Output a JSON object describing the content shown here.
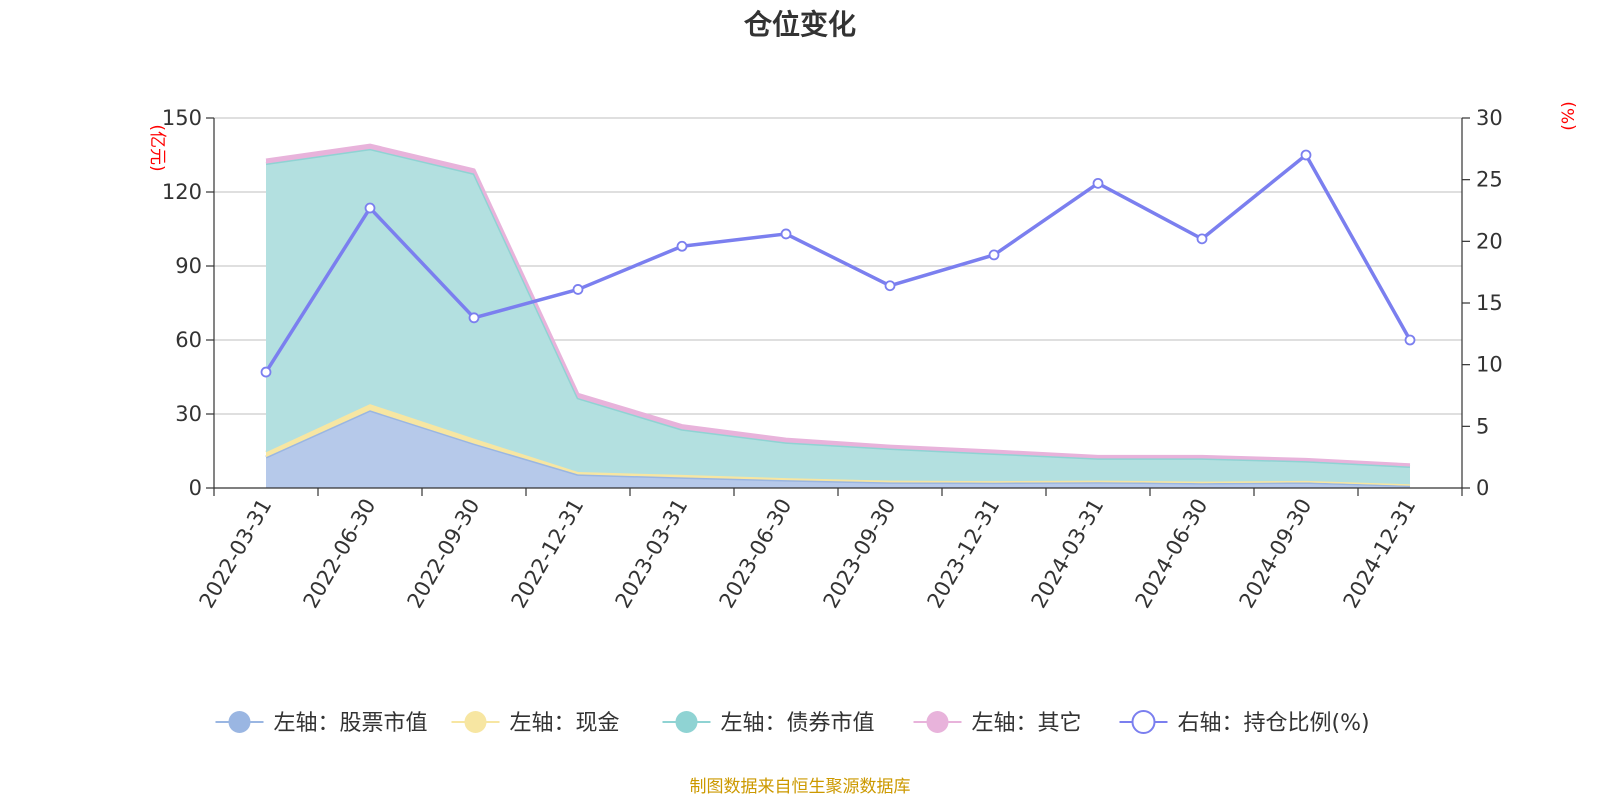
{
  "chart_data": {
    "type": "area",
    "title": "仓位变化",
    "y_left_label": "(亿元)",
    "y_right_label": "(%)",
    "y_left_range": [
      0,
      150
    ],
    "y_left_ticks": [
      0,
      30,
      60,
      90,
      120,
      150
    ],
    "y_right_range": [
      0,
      30
    ],
    "y_right_ticks": [
      0,
      5,
      10,
      15,
      20,
      25,
      30
    ],
    "grid": true,
    "legend_position": "bottom",
    "categories": [
      "2022-03-31",
      "2022-06-30",
      "2022-09-30",
      "2022-12-31",
      "2023-03-31",
      "2023-06-30",
      "2023-09-30",
      "2023-12-31",
      "2024-03-31",
      "2024-06-30",
      "2024-09-30",
      "2024-12-31"
    ],
    "stacked_series": [
      {
        "name": "左轴：股票市值",
        "color": "#9ab6e2",
        "fill": "#b6c9ea",
        "values": [
          12.5,
          31.5,
          18.0,
          5.5,
          4.3,
          3.2,
          2.3,
          2.2,
          2.4,
          2.0,
          2.3,
          1.0
        ]
      },
      {
        "name": "左轴：现金",
        "color": "#f7e6a2",
        "fill": "#f7e6a2",
        "values": [
          2.0,
          2.5,
          2.0,
          1.0,
          1.0,
          0.8,
          0.7,
          0.6,
          0.6,
          0.6,
          0.6,
          0.5
        ]
      },
      {
        "name": "左轴：债券市值",
        "color": "#8fd3d3",
        "fill": "#b3e0e0",
        "values": [
          117.0,
          103.5,
          107.5,
          30.0,
          18.5,
          14.5,
          13.0,
          11.2,
          9.0,
          9.4,
          8.0,
          7.2
        ]
      },
      {
        "name": "左轴：其它",
        "color": "#e8b3db",
        "fill": "#e8b3db",
        "values": [
          1.5,
          1.5,
          1.5,
          1.5,
          1.5,
          1.3,
          1.0,
          1.0,
          0.8,
          0.8,
          0.7,
          0.7
        ]
      }
    ],
    "line_series": {
      "name": "右轴：持仓比例(%)",
      "color": "#7b7fef",
      "values": [
        9.4,
        22.7,
        13.8,
        16.1,
        19.6,
        20.6,
        16.4,
        18.9,
        24.7,
        20.2,
        27.0,
        12.0
      ]
    },
    "source": "制图数据来自恒生聚源数据库"
  },
  "colors": {
    "title": "#333333",
    "axis_label": "#ff0000",
    "tick": "#333333",
    "grid": "#cccccc",
    "source": "#cc9900"
  }
}
